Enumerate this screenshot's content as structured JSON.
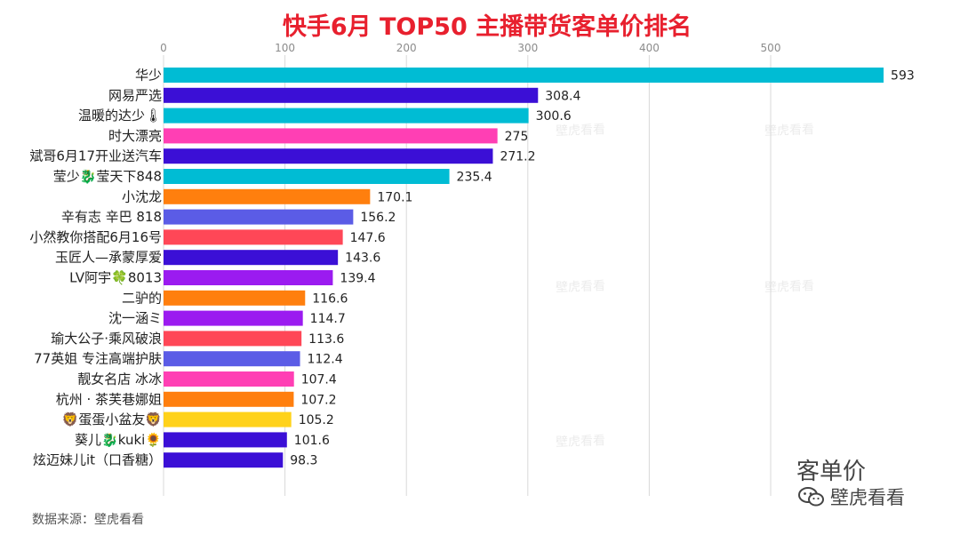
{
  "title": "快手6月 TOP50 主播带货客单价排名",
  "source_note": "数据来源：壁虎看看",
  "metric_caption": "客单价",
  "brand_name": "壁虎看看",
  "watermark_text": "壁虎看看",
  "colors": {
    "title": "#e8202e",
    "grid": "#d9d9d9",
    "axis_tick": "#8c8c8c",
    "label": "#222222"
  },
  "chart_data": {
    "type": "bar",
    "orientation": "horizontal",
    "title": "快手6月 TOP50 主播带货客单价排名",
    "xlabel": "",
    "ylabel": "",
    "xlim": [
      0,
      600
    ],
    "x_ticks": [
      0,
      100,
      200,
      300,
      400,
      500
    ],
    "x_tick_labels": [
      "0",
      "100",
      "200",
      "300",
      "400",
      "500"
    ],
    "grid": "vertical",
    "categories": [
      "华少",
      "网易严选",
      "温暖的达少🌡",
      "时大漂亮",
      "斌哥6月17开业送汽车",
      "莹少🐉莹天下848",
      "小沈龙",
      "辛有志 辛巴 818",
      "小然教你搭配6月16号",
      "玉匠人—承蒙厚爱",
      "LV阿宇🍀8013",
      "二驴的",
      "沈一涵ミ",
      "瑜大公子·乘风破浪",
      "77英姐 专注高端护肤",
      "靓女名店 冰冰",
      "杭州 · 茶芙巷娜姐",
      "🦁蛋蛋小盆友🦁",
      "葵儿🐉kuki🌻",
      "炫迈妹儿it（口香糖）"
    ],
    "values": [
      593,
      308.4,
      300.6,
      275,
      271.2,
      235.4,
      170.1,
      156.2,
      147.6,
      143.6,
      139.4,
      116.6,
      114.7,
      113.6,
      112.4,
      107.4,
      107.2,
      105.2,
      101.6,
      98.3
    ],
    "value_labels": [
      "593",
      "308.4",
      "300.6",
      "275",
      "271.2",
      "235.4",
      "170.1",
      "156.2",
      "147.6",
      "143.6",
      "139.4",
      "116.6",
      "114.7",
      "113.6",
      "112.4",
      "107.4",
      "107.2",
      "105.2",
      "101.6",
      "98.3"
    ],
    "bar_colors": [
      "#00bcd4",
      "#3b0fd6",
      "#00bcd4",
      "#ff3fb4",
      "#3b0fd6",
      "#00bcd4",
      "#ff7f0e",
      "#5b5ce6",
      "#ff4757",
      "#3b0fd6",
      "#9b1bf0",
      "#ff7f0e",
      "#9b1bf0",
      "#ff4757",
      "#5b5ce6",
      "#ff3fb4",
      "#ff7f0e",
      "#ffd21a",
      "#3b0fd6",
      "#3b0fd6"
    ]
  }
}
